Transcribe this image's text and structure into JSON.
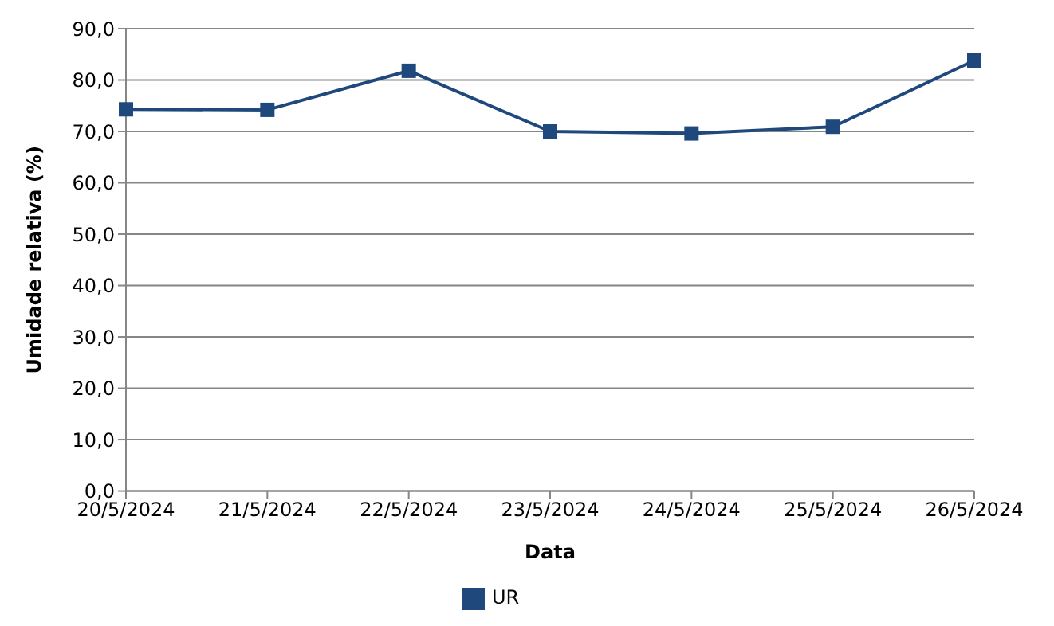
{
  "chart_data": {
    "type": "line",
    "xlabel": "Data",
    "ylabel": "Umidade relativa (%)",
    "categories": [
      "20/5/2024",
      "21/5/2024",
      "22/5/2024",
      "23/5/2024",
      "24/5/2024",
      "25/5/2024",
      "26/5/2024"
    ],
    "series": [
      {
        "name": "UR",
        "color": "#1f497d",
        "values": [
          74.3,
          74.2,
          81.8,
          70.0,
          69.6,
          70.9,
          83.8
        ]
      }
    ],
    "ylim": [
      0,
      90
    ],
    "yticks": [
      {
        "value": 0,
        "label": "0,0"
      },
      {
        "value": 10,
        "label": "10,0"
      },
      {
        "value": 20,
        "label": "20,0"
      },
      {
        "value": 30,
        "label": "30,0"
      },
      {
        "value": 40,
        "label": "40,0"
      },
      {
        "value": 50,
        "label": "50,0"
      },
      {
        "value": 60,
        "label": "60,0"
      },
      {
        "value": 70,
        "label": "70,0"
      },
      {
        "value": 80,
        "label": "80,0"
      },
      {
        "value": 90,
        "label": "90,0"
      }
    ],
    "grid": "y",
    "legend": "bottom",
    "marker": "square",
    "line_style": "solid"
  }
}
